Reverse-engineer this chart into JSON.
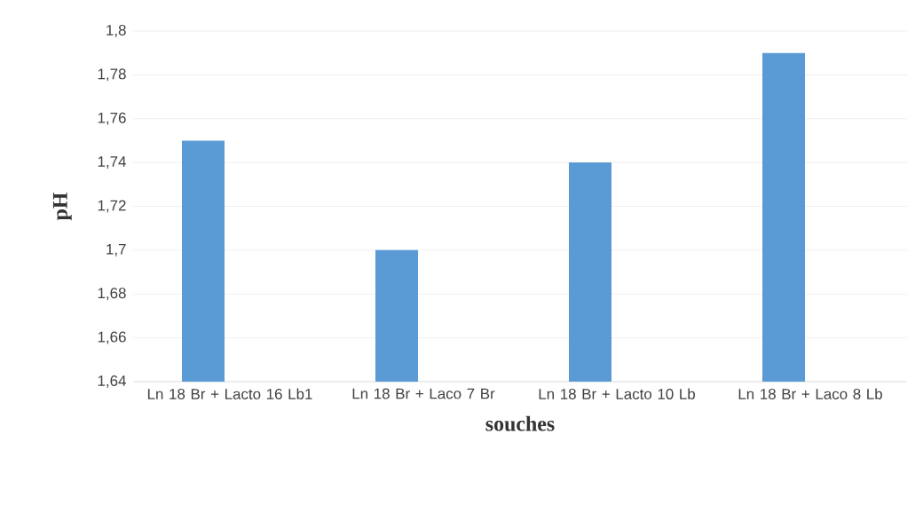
{
  "chart_data": {
    "type": "bar",
    "xlabel": "souches",
    "ylabel": "pH",
    "categories": [
      "Ln 18 Br + Lacto 16 Lb1",
      "Ln 18 Br + Laco 7 Br",
      "Ln 18 Br + Lacto 10 Lb",
      "Ln 18 Br + Laco 8 Lb"
    ],
    "values": [
      1.75,
      1.7,
      1.74,
      1.79
    ],
    "color": "#5b9bd5",
    "ylim": [
      1.64,
      1.8
    ],
    "yticks": [
      {
        "value": 1.64,
        "label": "1,64"
      },
      {
        "value": 1.66,
        "label": "1,66"
      },
      {
        "value": 1.68,
        "label": "1,68"
      },
      {
        "value": 1.7,
        "label": "1,7"
      },
      {
        "value": 1.72,
        "label": "1,72"
      },
      {
        "value": 1.74,
        "label": "1,74"
      },
      {
        "value": 1.76,
        "label": "1,76"
      },
      {
        "value": 1.78,
        "label": "1,78"
      },
      {
        "value": 1.8,
        "label": "1,8"
      }
    ],
    "grid": "y"
  }
}
